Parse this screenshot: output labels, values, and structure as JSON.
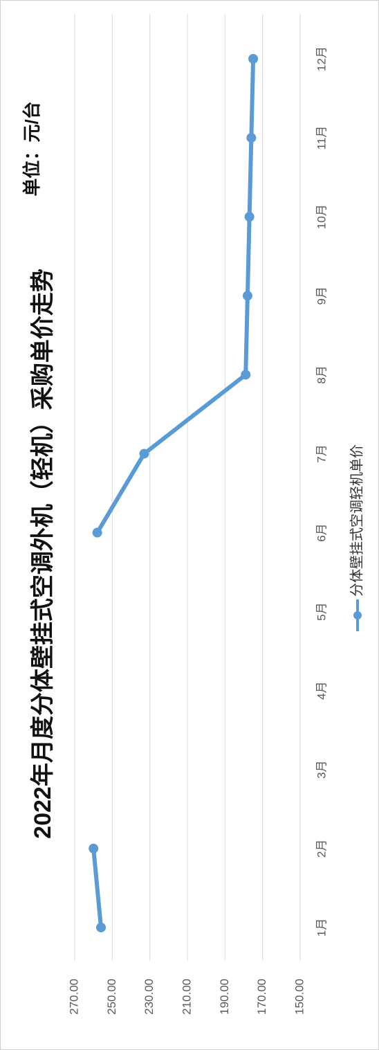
{
  "chart_data": {
    "type": "line",
    "title": "2022年月度分体壁挂式空调外机（轻机）采购单价走势",
    "unit_label": "单位：元/台",
    "categories": [
      "1月",
      "2月",
      "3月",
      "4月",
      "5月",
      "6月",
      "7月",
      "8月",
      "9月",
      "10月",
      "11月",
      "12月"
    ],
    "series": [
      {
        "name": "分体壁挂式空调轻机单价",
        "values": [
          256,
          260,
          null,
          null,
          null,
          258,
          233,
          179,
          178,
          177,
          176,
          175
        ],
        "color": "#5b9bd5"
      }
    ],
    "y_ticks": [
      "270.00",
      "250.00",
      "230.00",
      "210.00",
      "190.00",
      "170.00",
      "150.00"
    ],
    "ylim": [
      150,
      270
    ],
    "grid": true,
    "legend_position": "bottom",
    "orientation": "rotated-90-clockwise"
  }
}
